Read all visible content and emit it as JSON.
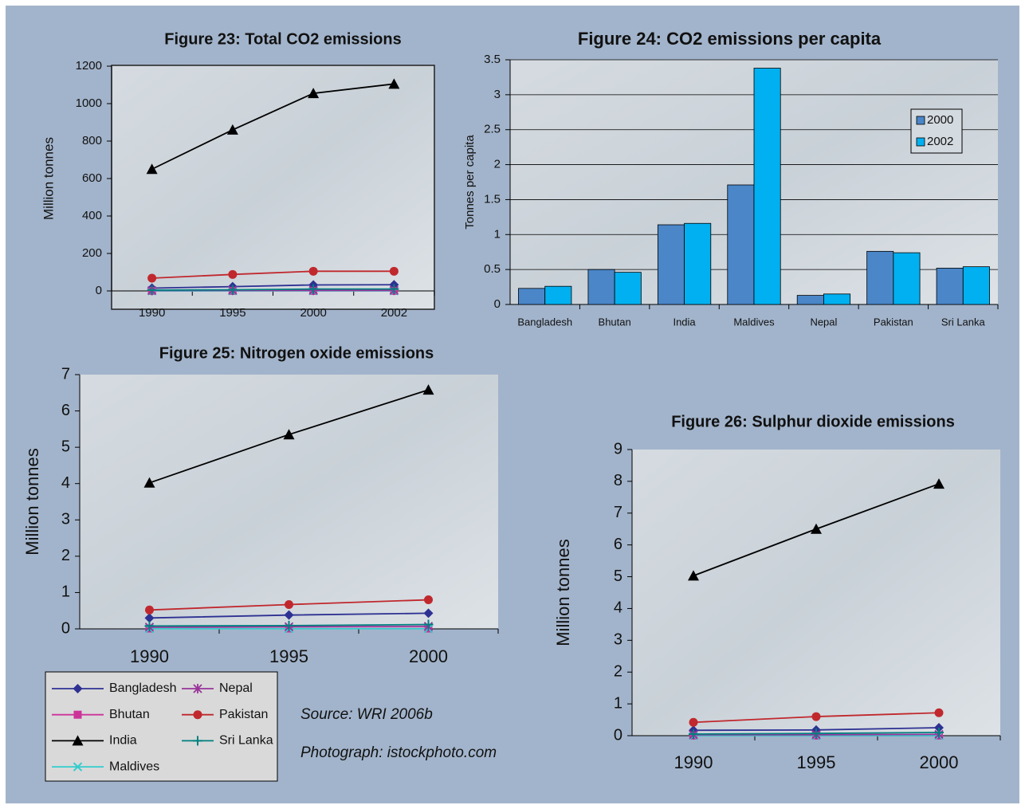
{
  "chart_data": [
    {
      "type": "line",
      "title": "Figure 23: Total CO2 emissions",
      "y_label": "Million tonnes",
      "categories": [
        "1990",
        "1995",
        "2000",
        "2002"
      ],
      "ylim": [
        0,
        1200
      ],
      "yticks": [
        0,
        200,
        400,
        600,
        800,
        1000,
        1200
      ],
      "series": [
        {
          "color": "#2e3192",
          "marker": "diamond",
          "values": [
            15,
            23,
            32,
            33
          ]
        },
        {
          "color": "#cc3399",
          "marker": "square",
          "values": [
            0.5,
            0.5,
            0.5,
            0.5
          ]
        },
        {
          "color": "#000000",
          "marker": "triangle",
          "values": [
            650,
            860,
            1055,
            1105
          ]
        },
        {
          "color": "#33cccc",
          "marker": "x",
          "values": [
            0.3,
            0.4,
            0.5,
            0.5
          ]
        },
        {
          "color": "#993399",
          "marker": "star",
          "values": [
            2,
            3,
            3,
            3
          ]
        },
        {
          "color": "#c0282d",
          "marker": "circle",
          "values": [
            68,
            88,
            105,
            105
          ]
        },
        {
          "color": "#008080",
          "marker": "plus",
          "values": [
            4,
            6,
            10,
            10
          ]
        }
      ]
    },
    {
      "type": "bar",
      "title": "Figure 24: CO2 emissions per capita",
      "y_label": "Tonnes per capita",
      "categories": [
        "Bangladesh",
        "Bhutan",
        "India",
        "Maldives",
        "Nepal",
        "Pakistan",
        "Sri Lanka"
      ],
      "ylim": [
        0,
        3.5
      ],
      "yticks": [
        0,
        0.5,
        1,
        1.5,
        2,
        2.5,
        3,
        3.5
      ],
      "grid": true,
      "legend": "upper-right",
      "series": [
        {
          "name": "2000",
          "color": "#4a86c8",
          "values": [
            0.23,
            0.5,
            1.14,
            1.71,
            0.13,
            0.76,
            0.52
          ]
        },
        {
          "name": "2002",
          "color": "#00b0f0",
          "values": [
            0.26,
            0.46,
            1.16,
            3.38,
            0.15,
            0.74,
            0.54
          ]
        }
      ]
    },
    {
      "type": "line",
      "title": "Figure 25: Nitrogen oxide emissions",
      "y_label": "Million tonnes",
      "categories": [
        "1990",
        "1995",
        "2000"
      ],
      "ylim": [
        0,
        7
      ],
      "yticks": [
        0,
        1,
        2,
        3,
        4,
        5,
        6,
        7
      ],
      "legend": "below",
      "series": [
        {
          "name": "Bangladesh",
          "color": "#2e3192",
          "marker": "diamond",
          "values": [
            0.3,
            0.38,
            0.43
          ]
        },
        {
          "name": "Bhutan",
          "color": "#cc3399",
          "marker": "square",
          "values": [
            0.01,
            0.01,
            0.01
          ]
        },
        {
          "name": "India",
          "color": "#000000",
          "marker": "triangle",
          "values": [
            4.02,
            5.35,
            6.58
          ]
        },
        {
          "name": "Maldives",
          "color": "#33cccc",
          "marker": "x",
          "values": [
            0.005,
            0.005,
            0.005
          ]
        },
        {
          "name": "Nepal",
          "color": "#993399",
          "marker": "star",
          "values": [
            0.05,
            0.06,
            0.07
          ]
        },
        {
          "name": "Pakistan",
          "color": "#c0282d",
          "marker": "circle",
          "values": [
            0.52,
            0.67,
            0.8
          ]
        },
        {
          "name": "Sri Lanka",
          "color": "#008080",
          "marker": "plus",
          "values": [
            0.08,
            0.09,
            0.12
          ]
        }
      ]
    },
    {
      "type": "line",
      "title": "Figure 26: Sulphur dioxide emissions",
      "y_label": "Million tonnes",
      "categories": [
        "1990",
        "1995",
        "2000"
      ],
      "ylim": [
        0,
        9
      ],
      "yticks": [
        0,
        1,
        2,
        3,
        4,
        5,
        6,
        7,
        8,
        9
      ],
      "series": [
        {
          "color": "#2e3192",
          "marker": "diamond",
          "values": [
            0.17,
            0.18,
            0.25
          ]
        },
        {
          "color": "#cc3399",
          "marker": "square",
          "values": [
            0.005,
            0.005,
            0.005
          ]
        },
        {
          "color": "#000000",
          "marker": "triangle",
          "values": [
            5.03,
            6.5,
            7.92
          ]
        },
        {
          "color": "#33cccc",
          "marker": "x",
          "values": [
            0.002,
            0.002,
            0.002
          ]
        },
        {
          "color": "#993399",
          "marker": "star",
          "values": [
            0.03,
            0.03,
            0.04
          ]
        },
        {
          "color": "#c0282d",
          "marker": "circle",
          "values": [
            0.42,
            0.6,
            0.72
          ]
        },
        {
          "color": "#008080",
          "marker": "plus",
          "values": [
            0.05,
            0.07,
            0.1
          ]
        }
      ]
    }
  ],
  "source": "Source: WRI 2006b",
  "photo_credit": "Photograph: istockphoto.com"
}
